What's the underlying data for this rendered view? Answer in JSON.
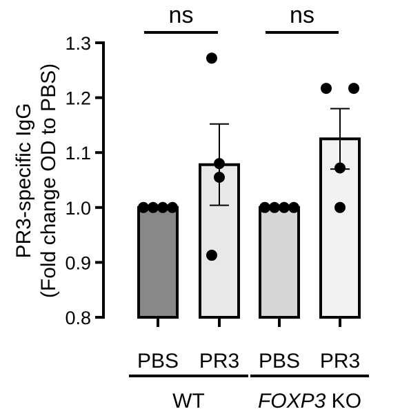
{
  "chart_data": {
    "type": "bar",
    "ylabel_line1": "PR3-specific IgG",
    "ylabel_line2": "(Fold change OD to PBS)",
    "ylim": [
      0.8,
      1.3
    ],
    "y_ticks": [
      "0.8",
      "0.9",
      "1.0",
      "1.1",
      "1.2",
      "1.3"
    ],
    "grid": false,
    "bars": [
      {
        "label": "PBS",
        "value": 1.0,
        "sem": 0,
        "fill": "#888888",
        "points": [
          1.0,
          1.0,
          1.0,
          1.0
        ]
      },
      {
        "label": "PR3",
        "value": 1.078,
        "sem": 0.074,
        "fill": "#e8e8e8",
        "points": [
          1.272,
          1.08,
          1.055,
          0.913
        ]
      },
      {
        "label": "PBS",
        "value": 1.0,
        "sem": 0,
        "fill": "#d6d6d6",
        "points": [
          1.0,
          1.0,
          1.0,
          1.0
        ]
      },
      {
        "label": "PR3",
        "value": 1.125,
        "sem": 0.055,
        "fill": "#f2f2f2",
        "points": [
          1.217,
          1.217,
          1.072,
          1.0
        ]
      }
    ],
    "groups": [
      {
        "label_plain": "WT",
        "label_italic": "",
        "bars": [
          0,
          1
        ]
      },
      {
        "label_plain": " KO",
        "label_italic": "FOXP3",
        "bars": [
          2,
          3
        ]
      }
    ],
    "significance": [
      {
        "text": "ns",
        "bars": [
          0,
          1
        ]
      },
      {
        "text": "ns",
        "bars": [
          2,
          3
        ]
      }
    ]
  }
}
